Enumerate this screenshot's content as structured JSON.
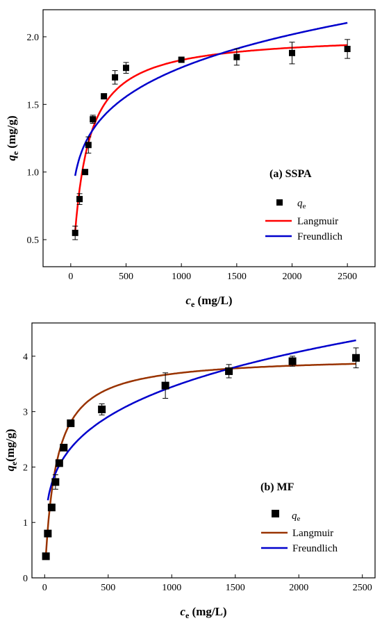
{
  "chart_data": [
    {
      "type": "scatter",
      "panel_title": "(a) SSPA",
      "xlabel": {
        "main": "c",
        "sub": "e",
        "unit": " (mg/L)"
      },
      "ylabel": {
        "main": "q",
        "sub": "e",
        "unit": " (mg/g)"
      },
      "xlim": [
        -250,
        2750
      ],
      "ylim": [
        0.3,
        2.2
      ],
      "xticks": [
        0,
        500,
        1000,
        1500,
        2000,
        2500
      ],
      "yticks": [
        0.5,
        1.0,
        1.5,
        2.0
      ],
      "ytick_labels": [
        "0.5",
        "1.0",
        "1.5",
        "2.0"
      ],
      "legend_position": "center-right",
      "points": {
        "name": "q",
        "name_sub": "e",
        "color": "#000000",
        "x": [
          40,
          80,
          130,
          160,
          200,
          300,
          400,
          500,
          1000,
          1500,
          2000,
          2500
        ],
        "y": [
          0.55,
          0.8,
          1.0,
          1.2,
          1.39,
          1.56,
          1.7,
          1.77,
          1.83,
          1.85,
          1.88,
          1.91
        ],
        "err": [
          0.05,
          0.04,
          0.0,
          0.06,
          0.03,
          0.0,
          0.05,
          0.04,
          0.02,
          0.06,
          0.08,
          0.07
        ]
      },
      "fits": [
        {
          "name": "Langmuir",
          "color": "#ff0000",
          "model": "langmuir",
          "qm": 2.02,
          "k": 0.0095,
          "x_range": [
            40,
            2500
          ]
        },
        {
          "name": "Freundlich",
          "color": "#0000cc",
          "model": "freundlich",
          "kf": 0.4884,
          "n": 0.1866,
          "x_range": [
            40,
            2500
          ]
        }
      ]
    },
    {
      "type": "scatter",
      "panel_title": "(b) MF",
      "xlabel": {
        "main": "c",
        "sub": "e",
        "unit": " (mg/L)"
      },
      "ylabel": {
        "main": "q",
        "sub": "e",
        "unit": "(mg/g)"
      },
      "xlim": [
        -100,
        2600
      ],
      "ylim": [
        0,
        4.6
      ],
      "xticks": [
        0,
        500,
        1000,
        1500,
        2000,
        2500
      ],
      "yticks": [
        0,
        1,
        2,
        3,
        4
      ],
      "ytick_labels": [
        "0",
        "1",
        "2",
        "3",
        "4"
      ],
      "legend_position": "bottom-right",
      "points": {
        "name": "q",
        "name_sub": "e",
        "color": "#000000",
        "x": [
          10,
          25,
          55,
          85,
          115,
          150,
          205,
          450,
          950,
          1450,
          1950,
          2450
        ],
        "y": [
          0.39,
          0.8,
          1.27,
          1.73,
          2.07,
          2.35,
          2.79,
          3.04,
          3.47,
          3.73,
          3.91,
          3.97
        ],
        "err": [
          0.05,
          0.05,
          0.0,
          0.13,
          0.0,
          0.05,
          0.05,
          0.1,
          0.23,
          0.12,
          0.09,
          0.18
        ]
      },
      "fits": [
        {
          "name": "Langmuir",
          "color": "#993300",
          "model": "langmuir",
          "qm": 4.0,
          "k": 0.0115,
          "x_range": [
            10,
            2450
          ]
        },
        {
          "name": "Freundlich",
          "color": "#0000cc",
          "model": "freundlich",
          "kf": 0.6385,
          "n": 0.244,
          "x_range": [
            25,
            2450
          ]
        }
      ]
    }
  ]
}
